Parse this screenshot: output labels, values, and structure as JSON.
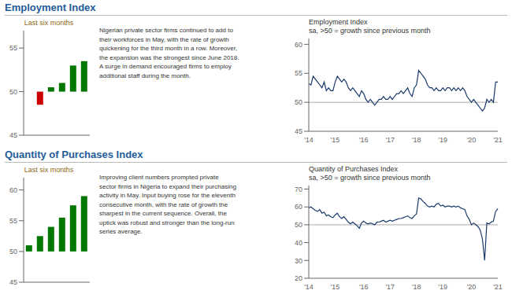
{
  "chart_data": [
    {
      "type": "bar",
      "title": "Last six months",
      "categories": [
        null,
        null,
        null,
        null,
        null,
        null
      ],
      "values": [
        50.0,
        48.5,
        50.5,
        51.0,
        53.0,
        53.5
      ],
      "colors": [
        "#007700",
        "#cc0000",
        "#007700",
        "#007700",
        "#007700",
        "#007700"
      ],
      "baseline": 50,
      "ylim": [
        45,
        57
      ],
      "yticks": [
        45,
        50,
        55
      ],
      "tick_labels": "y",
      "grid": false
    },
    {
      "type": "line",
      "title": "Employment Index",
      "subtitle": "sa, >50 = growth since previous month",
      "annotations": [
        "Nigerian private sector firms continued to add to\ntheir workforces in May, with the rate of growth\nquickening for the third month in a row. Moreover,\nthe expansion was the strongest since June 2018.\nA surge in demand encouraged firms to employ\nadditional staff during the month."
      ],
      "categories": [
        "'14",
        null,
        null,
        null,
        null,
        null,
        null,
        null,
        null,
        null,
        null,
        null,
        "'15",
        null,
        null,
        null,
        null,
        null,
        null,
        null,
        null,
        null,
        null,
        null,
        null,
        "'16",
        null,
        null,
        null,
        null,
        null,
        null,
        null,
        null,
        null,
        null,
        null,
        "'17",
        null,
        null,
        null,
        null,
        null,
        null,
        null,
        null,
        null,
        null,
        null,
        "'18",
        null,
        null,
        null,
        null,
        null,
        null,
        null,
        null,
        null,
        null,
        null,
        "'19",
        null,
        null,
        null,
        null,
        null,
        null,
        null,
        null,
        null,
        null,
        null,
        null,
        "'20",
        null,
        null,
        null,
        null,
        null,
        null,
        null,
        null,
        null,
        null,
        null,
        "'21"
      ],
      "values": [
        53.2,
        53.0,
        54.5,
        54.0,
        53.5,
        53.0,
        52.5,
        53.5,
        52.0,
        52.5,
        52.0,
        52.0,
        53.5,
        54.5,
        54.0,
        53.5,
        54.0,
        53.5,
        52.5,
        52.0,
        52.5,
        52.0,
        51.5,
        51.0,
        52.0,
        51.5,
        50.5,
        50.0,
        50.5,
        50.0,
        49.5,
        50.0,
        50.5,
        50.5,
        51.0,
        50.5,
        50.5,
        51.0,
        50.5,
        51.0,
        51.5,
        51.5,
        52.0,
        51.5,
        52.0,
        52.5,
        51.5,
        51.0,
        52.5,
        53.0,
        55.5,
        55.0,
        54.5,
        54.0,
        53.0,
        52.5,
        52.5,
        52.0,
        52.5,
        52.0,
        52.0,
        52.5,
        52.0,
        52.5,
        52.5,
        52.0,
        52.5,
        52.0,
        52.5,
        52.0,
        52.5,
        52.0,
        51.0,
        50.5,
        50.0,
        50.5,
        50.0,
        49.5,
        49.0,
        48.5,
        49.0,
        50.5,
        50.0,
        50.5,
        50.0,
        53.5,
        53.5
      ],
      "color": "#1a3a6b",
      "reference_line": 50,
      "ylim": [
        45,
        61
      ],
      "yticks": [
        45,
        50,
        55,
        60
      ],
      "grid": false
    },
    {
      "type": "bar",
      "title": "Last six months",
      "categories": [
        null,
        null,
        null,
        null,
        null,
        null
      ],
      "values": [
        51.0,
        52.5,
        54.0,
        55.5,
        57.5,
        59.0
      ],
      "colors": [
        "#007700",
        "#007700",
        "#007700",
        "#007700",
        "#007700",
        "#007700"
      ],
      "baseline": 50,
      "ylim": [
        45,
        62
      ],
      "yticks": [
        45,
        50,
        55,
        60
      ],
      "tick_labels": "y",
      "grid": false
    },
    {
      "type": "line",
      "title": "Quantity of Purchases Index",
      "subtitle": "sa, >50 = growth since previous month",
      "annotations": [
        "Improving client numbers prompted private\nsector firms in Nigeria to expand their purchasing\nactivity in May. Input buying rose for the eleventh\nconsecutive month, with the rate of growth the\nsharpest in the current sequence. Overall, the\nuptick was robust and stronger than the long-run\nseries average."
      ],
      "categories": [
        "'14",
        null,
        null,
        null,
        null,
        null,
        null,
        null,
        null,
        null,
        null,
        null,
        "'15",
        null,
        null,
        null,
        null,
        null,
        null,
        null,
        null,
        null,
        null,
        null,
        null,
        "'16",
        null,
        null,
        null,
        null,
        null,
        null,
        null,
        null,
        null,
        null,
        null,
        "'17",
        null,
        null,
        null,
        null,
        null,
        null,
        null,
        null,
        null,
        null,
        null,
        "'18",
        null,
        null,
        null,
        null,
        null,
        null,
        null,
        null,
        null,
        null,
        null,
        "'19",
        null,
        null,
        null,
        null,
        null,
        null,
        null,
        null,
        null,
        null,
        null,
        null,
        "'20",
        null,
        null,
        null,
        null,
        null,
        null,
        null,
        null,
        null,
        null,
        null,
        "'21"
      ],
      "values": [
        59.5,
        60.0,
        59.0,
        58.0,
        57.5,
        58.5,
        56.5,
        57.0,
        55.0,
        55.5,
        54.5,
        54.0,
        55.5,
        56.5,
        54.5,
        53.5,
        54.5,
        53.0,
        51.5,
        50.5,
        51.5,
        50.5,
        49.5,
        48.0,
        51.0,
        52.0,
        51.0,
        50.5,
        51.0,
        50.5,
        50.0,
        51.5,
        51.5,
        52.0,
        52.5,
        51.5,
        52.0,
        52.5,
        52.0,
        52.5,
        53.0,
        53.5,
        53.5,
        54.0,
        54.5,
        55.0,
        54.0,
        53.5,
        55.0,
        56.0,
        65.0,
        64.5,
        63.0,
        62.0,
        60.5,
        60.0,
        60.5,
        60.0,
        61.5,
        62.0,
        60.5,
        61.0,
        60.0,
        60.5,
        60.5,
        60.0,
        60.5,
        60.0,
        60.5,
        59.5,
        59.0,
        58.5,
        55.0,
        53.0,
        50.0,
        51.0,
        50.0,
        49.0,
        47.0,
        42.0,
        30.0,
        51.0,
        50.5,
        51.5,
        52.0,
        57.5,
        59.0
      ],
      "color": "#1a3a6b",
      "reference_line": 50,
      "ylim": [
        20,
        72
      ],
      "yticks": [
        20,
        30,
        40,
        50,
        60,
        70
      ],
      "grid": false
    }
  ]
}
